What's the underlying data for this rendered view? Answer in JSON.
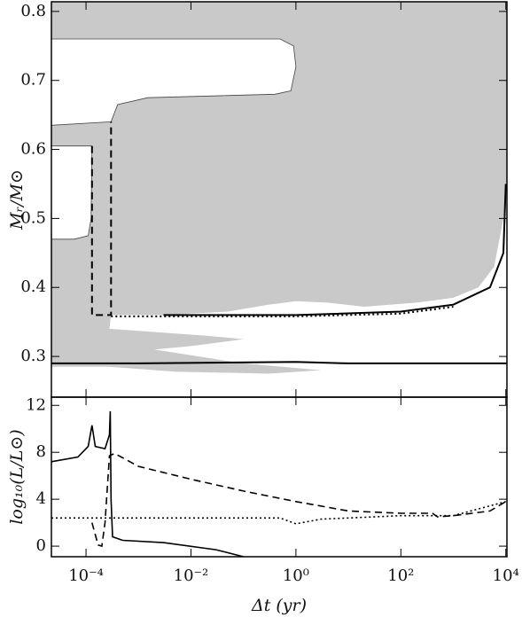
{
  "chart_data": [
    {
      "type": "area",
      "y_label": "Mᵣ/M⊙",
      "xscale": "log",
      "xlim": [
        2.19e-05,
        10500
      ],
      "ylim": [
        0.241,
        0.814
      ],
      "yticks": [
        0.3,
        0.4,
        0.5,
        0.6,
        0.7,
        0.8
      ],
      "series": [
        {
          "color": "#c9c9c9",
          "fill": true,
          "x": [
            2.19e-05,
            10500,
            10500,
            9000,
            6000,
            3000,
            1000,
            200,
            20,
            4,
            1,
            0.3,
            0.05,
            0.003,
            0.0003,
            0.00028,
            0.02,
            0.1,
            0.01,
            0.002,
            0.1,
            3,
            0.3,
            0.005,
            0.00028,
            2.19e-05
          ],
          "y": [
            0.814,
            0.814,
            0.56,
            0.5,
            0.43,
            0.4,
            0.385,
            0.378,
            0.372,
            0.378,
            0.38,
            0.375,
            0.365,
            0.36,
            0.36,
            0.34,
            0.33,
            0.325,
            0.315,
            0.31,
            0.29,
            0.28,
            0.275,
            0.278,
            0.285,
            0.285
          ]
        },
        {
          "color": "#ffffff",
          "fill": true,
          "x": [
            2.19e-05,
            0.5,
            0.9,
            1,
            0.8,
            0.4,
            0.0015,
            0.0004,
            0.0003,
            2.19e-05
          ],
          "y": [
            0.76,
            0.76,
            0.75,
            0.72,
            0.685,
            0.68,
            0.675,
            0.665,
            0.64,
            0.635
          ]
        },
        {
          "color": "#ffffff",
          "fill": true,
          "x": [
            2.19e-05,
            0.00013,
            0.000125,
            0.00011,
            6e-05,
            2.19e-05
          ],
          "y": [
            0.605,
            0.605,
            0.5,
            0.475,
            0.47,
            0.47
          ]
        },
        {
          "color": "#000000",
          "fill": false,
          "style": "solid",
          "x": [
            2.19e-05,
            0.001,
            1,
            10,
            10000,
            10500
          ],
          "y": [
            0.29,
            0.29,
            0.292,
            0.29,
            0.29,
            0.29
          ]
        },
        {
          "color": "#000000",
          "fill": false,
          "style": "solid",
          "x": [
            0.003,
            1,
            100,
            1000,
            5000,
            9000,
            10000
          ],
          "y": [
            0.36,
            0.36,
            0.365,
            0.375,
            0.4,
            0.45,
            0.55
          ]
        },
        {
          "color": "#000000",
          "fill": false,
          "style": "dotted",
          "x": [
            0.0003,
            0.01,
            1,
            100,
            1000
          ],
          "y": [
            0.358,
            0.358,
            0.358,
            0.362,
            0.372
          ]
        },
        {
          "color": "#000000",
          "fill": false,
          "style": "dashed",
          "x": [
            0.00013,
            0.00013,
            0.0003,
            0.0003
          ],
          "y": [
            0.605,
            0.36,
            0.36,
            0.64
          ]
        }
      ]
    },
    {
      "type": "line",
      "y_label": "log₁₀(L/L⊙)",
      "x_label": "Δt (yr)",
      "xscale": "log",
      "xlim": [
        2.19e-05,
        10500
      ],
      "ylim": [
        -0.9,
        12.7
      ],
      "xticks": [
        {
          "value": 0.0001,
          "label": "10⁻⁴"
        },
        {
          "value": 0.01,
          "label": "10⁻²"
        },
        {
          "value": 1,
          "label": "10⁰"
        },
        {
          "value": 100,
          "label": "10²"
        },
        {
          "value": 10000,
          "label": "10⁴"
        }
      ],
      "yticks": [
        0,
        4,
        8,
        12
      ],
      "series": [
        {
          "color": "#000000",
          "style": "solid",
          "x": [
            2.19e-05,
            7e-05,
            0.00011,
            0.00013,
            0.00015,
            0.00023,
            0.00028,
            0.00029,
            0.0003,
            0.00032,
            0.0005,
            0.003,
            0.03,
            0.1
          ],
          "y": [
            7.2,
            7.6,
            8.5,
            10.3,
            8.5,
            8.3,
            9.5,
            11.5,
            4,
            0.8,
            0.5,
            0.3,
            -0.3,
            -0.9
          ]
        },
        {
          "color": "#000000",
          "style": "dashed",
          "x": [
            0.00013,
            0.00017,
            0.0002,
            0.00023,
            0.00028,
            0.00035,
            0.001,
            0.01,
            0.1,
            1,
            10,
            100,
            400,
            500,
            1000,
            5000,
            10000
          ],
          "y": [
            2,
            0.1,
            0,
            2,
            7.7,
            7.9,
            6.8,
            5.7,
            4.7,
            3.8,
            3,
            2.8,
            2.8,
            2.5,
            2.6,
            3,
            3.8
          ]
        },
        {
          "color": "#000000",
          "style": "dotted",
          "x": [
            2.19e-05,
            0.5,
            1,
            3,
            10,
            100,
            1000,
            10000
          ],
          "y": [
            2.4,
            2.4,
            1.9,
            2.3,
            2.4,
            2.6,
            2.6,
            3.8
          ]
        }
      ]
    }
  ]
}
